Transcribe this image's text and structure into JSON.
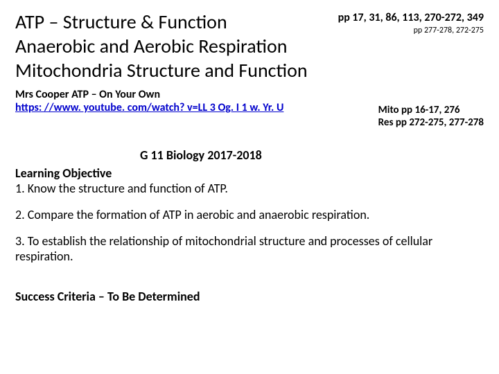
{
  "title": {
    "line1": "ATP – Structure & Function",
    "line2": "Anaerobic and Aerobic Respiration",
    "line3": "Mitochondria Structure and Function"
  },
  "page_refs_top": {
    "line1": "pp 17, 31, 86, 113, 270-272, 349",
    "line2": "pp 277-278, 272-275"
  },
  "author_line": "Mrs Cooper ATP – On Your Own",
  "video_url": "https: //www. youtube. com/watch? v=LL 3 Og. I 1 w. Yr. U",
  "side_refs": {
    "mito": "Mito pp 16-17, 276",
    "res": "Res pp 272-275, 277-278"
  },
  "course_label": "G 11 Biology 2017-2018",
  "learning_objective_heading": "Learning Objective",
  "objectives": {
    "o1": "1.  Know the structure and function of ATP.",
    "o2": "2.  Compare the formation of ATP in aerobic and anaerobic respiration.",
    "o3": "3.  To establish the relationship of mitochondrial structure and processes of cellular respiration."
  },
  "success_criteria": "Success Criteria – To Be Determined",
  "colors": {
    "text": "#000000",
    "link": "#0000cc",
    "background": "#ffffff"
  }
}
